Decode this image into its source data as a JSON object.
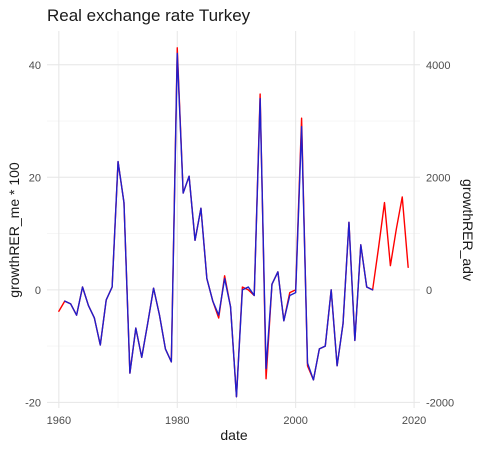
{
  "chart_data": {
    "type": "line",
    "title": "Real exchange rate Turkey",
    "xlabel": "date",
    "ylabel_left": "growthRER_me * 100",
    "ylabel_right": "growthRER_adv",
    "xlim": [
      1958,
      2021
    ],
    "ylim_left": [
      -21,
      46
    ],
    "ylim_right": [
      -2100,
      4600
    ],
    "x_ticks": [
      1960,
      1980,
      2000,
      2020
    ],
    "y_ticks_left": [
      -20,
      0,
      20,
      40
    ],
    "y_ticks_right": [
      -2000,
      0,
      2000,
      4000
    ],
    "grid": true,
    "colors": {
      "series_me": "#ff0000",
      "series_adv": "#1f1fcc"
    },
    "series": [
      {
        "axis": "left",
        "color": "#ff0000",
        "x": [
          1960,
          1961,
          1962,
          1963,
          1964,
          1965,
          1966,
          1967,
          1968,
          1969,
          1970,
          1971,
          1972,
          1973,
          1974,
          1975,
          1976,
          1977,
          1978,
          1979,
          1980,
          1981,
          1982,
          1983,
          1984,
          1985,
          1986,
          1987,
          1988,
          1989,
          1990,
          1991,
          1992,
          1993,
          1994,
          1995,
          1996,
          1997,
          1998,
          1999,
          2000,
          2001,
          2002,
          2003,
          2004,
          2005,
          2006,
          2007,
          2008,
          2009,
          2010,
          2011,
          2012,
          2013,
          2014,
          2015,
          2016,
          2017,
          2018,
          2019
        ],
        "values": [
          -3.8,
          -2.0,
          -2.5,
          -4.5,
          0.5,
          -2.8,
          -5.0,
          -9.8,
          -1.8,
          0.5,
          22.8,
          15.5,
          -14.8,
          -6.8,
          -12.0,
          -6.0,
          0.3,
          -4.5,
          -10.5,
          -12.8,
          43.0,
          17.2,
          20.2,
          8.8,
          14.5,
          2.0,
          -2.0,
          -5.0,
          2.5,
          -3.0,
          -19.0,
          0.5,
          0.0,
          -1.0,
          34.8,
          -15.8,
          1.0,
          3.2,
          -5.5,
          -0.5,
          0.0,
          30.5,
          -13.5,
          -16.0,
          -10.5,
          -10.0,
          0.0,
          -13.5,
          -6.0,
          12.0,
          -9.0,
          8.0,
          0.5,
          0.0,
          7.5,
          15.5,
          4.3,
          10.8,
          16.5,
          4.0
        ]
      },
      {
        "axis": "right",
        "color": "#1f1fcc",
        "x": [
          1961,
          1962,
          1963,
          1964,
          1965,
          1966,
          1967,
          1968,
          1969,
          1970,
          1971,
          1972,
          1973,
          1974,
          1975,
          1976,
          1977,
          1978,
          1979,
          1980,
          1981,
          1982,
          1983,
          1984,
          1985,
          1986,
          1987,
          1988,
          1989,
          1990,
          1991,
          1992,
          1993,
          1994,
          1995,
          1996,
          1997,
          1998,
          1999,
          2000,
          2001,
          2002,
          2003,
          2004,
          2005,
          2006,
          2007,
          2008,
          2009,
          2010,
          2011,
          2012,
          2013
        ],
        "values": [
          -200,
          -250,
          -450,
          50,
          -280,
          -500,
          -980,
          -180,
          50,
          2280,
          1550,
          -1480,
          -680,
          -1200,
          -600,
          30,
          -450,
          -1050,
          -1280,
          4200,
          1720,
          2020,
          880,
          1450,
          200,
          -200,
          -450,
          200,
          -300,
          -1900,
          0,
          50,
          -100,
          3400,
          -1400,
          100,
          320,
          -550,
          -100,
          -50,
          2900,
          -1300,
          -1600,
          -1050,
          -1000,
          0,
          -1350,
          -600,
          1200,
          -900,
          800,
          50,
          0
        ]
      }
    ]
  }
}
